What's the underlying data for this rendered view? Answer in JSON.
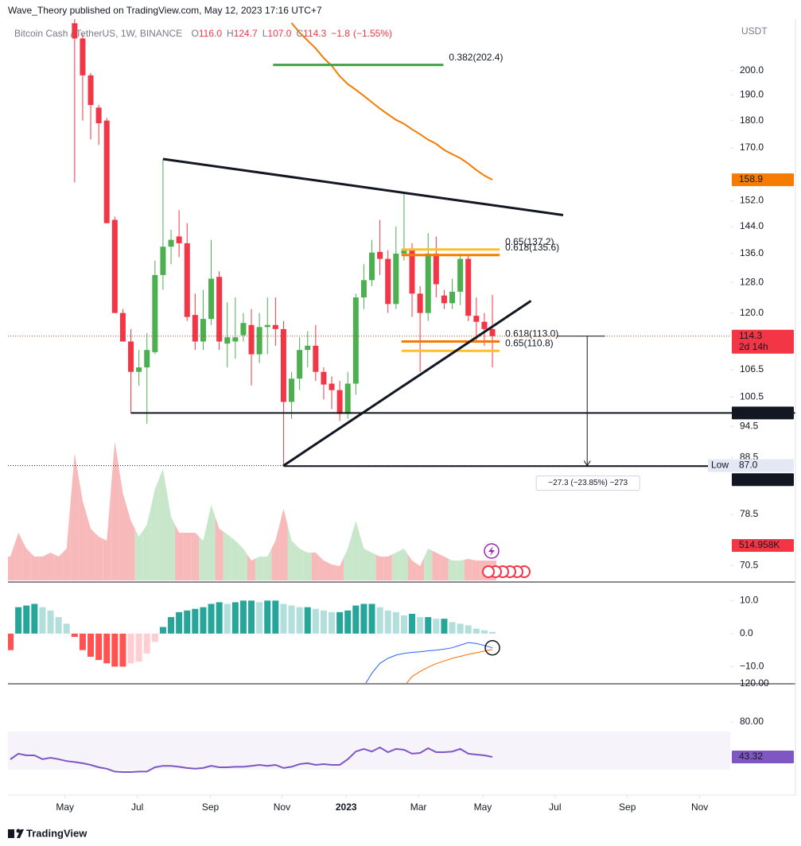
{
  "header": {
    "publisher": "Wave_Theory published on TradingView.com, May 12, 2023 17:16 UTC+7"
  },
  "footer": {
    "brand": "TradingView"
  },
  "chart_data": {
    "type": "candlestick",
    "title": "Bitcoin Cash / TetherUS, 1W, BINANCE",
    "legend": [
      {
        "key": "O",
        "value": 116,
        "label": "116.0"
      },
      {
        "key": "H",
        "value": 124.7,
        "label": "124.7"
      },
      {
        "key": "L",
        "value": 107,
        "label": "107.0"
      },
      {
        "key": "C",
        "value": 114.3,
        "label": "114.3"
      }
    ],
    "change": {
      "value": -1.8,
      "label": "−1.8"
    },
    "change_pct": {
      "value": -1.55,
      "label": "(−1.55%)"
    },
    "currency": "USDT",
    "countdown": "2d 14h",
    "grid": false,
    "log_scale": true,
    "up_color": "#4caf50",
    "down_color": "#f23645",
    "xlim": [
      -0.3,
      89.6
    ],
    "xticks": [
      {
        "value": 6.8,
        "label": "May"
      },
      {
        "value": 15.8,
        "label": "Jul"
      },
      {
        "value": 24.9,
        "label": "Sep"
      },
      {
        "value": 33.8,
        "label": "Nov"
      },
      {
        "value": 41.8,
        "label": "2023"
      },
      {
        "value": 50.8,
        "label": "Mar"
      },
      {
        "value": 58.8,
        "label": "May"
      },
      {
        "value": 67.8,
        "label": "Jul"
      },
      {
        "value": 76.8,
        "label": "Sep"
      },
      {
        "value": 85.8,
        "label": "Nov"
      }
    ],
    "ylim": [
      68.3,
      220.7
    ],
    "yticks": [
      {
        "value": 200,
        "label": "200.0"
      },
      {
        "value": 190,
        "label": "190.0"
      },
      {
        "value": 180,
        "label": "180.0"
      },
      {
        "value": 170,
        "label": "170.0"
      },
      {
        "value": 152,
        "label": "152.0"
      },
      {
        "value": 144,
        "label": "144.0"
      },
      {
        "value": 136,
        "label": "136.0"
      },
      {
        "value": 128,
        "label": "128.0"
      },
      {
        "value": 120,
        "label": "120.0"
      },
      106.5,
      100.5,
      94.5,
      88.5,
      78.5,
      70.5
    ],
    "open": [
      null,
      null,
      null,
      null,
      null,
      null,
      null,
      null,
      221,
      214,
      198,
      185,
      180,
      146,
      120,
      113,
      106,
      107,
      110.5,
      130,
      138,
      141,
      139,
      119.5,
      113,
      118.5,
      129.5,
      112.5,
      113,
      114.5,
      117,
      110,
      116.5,
      117,
      116,
      99.5,
      104.5,
      111,
      112,
      106,
      103.4,
      102,
      97,
      103.4,
      124,
      128.6,
      136.5,
      134.5,
      122.3,
      136,
      137,
      125,
      120,
      136,
      124.5,
      122.5,
      125.5,
      134.5,
      119.3,
      117.8,
      116
    ],
    "high": [
      null,
      null,
      null,
      null,
      null,
      null,
      null,
      null,
      228,
      216,
      199,
      186,
      181,
      147,
      121,
      116,
      111,
      115,
      134,
      166,
      143,
      149,
      145,
      125,
      126,
      140,
      131,
      122.7,
      124,
      120,
      121,
      120,
      124,
      124,
      118,
      106,
      114,
      115.5,
      117,
      107,
      105,
      104,
      106,
      125,
      133,
      140,
      146,
      137,
      144,
      154.8,
      139,
      127,
      142,
      141,
      126,
      129,
      136,
      135.5,
      124,
      120,
      124.7
    ],
    "low": [
      null,
      null,
      null,
      null,
      null,
      null,
      null,
      null,
      158,
      180,
      173,
      171,
      145,
      120,
      113,
      97.2,
      103,
      95,
      110,
      126,
      133,
      135,
      118,
      111,
      111,
      117,
      111,
      107,
      109,
      113,
      103,
      108,
      110,
      112,
      87,
      96,
      102,
      107,
      104,
      100,
      98,
      95.6,
      96,
      101,
      121,
      127,
      130,
      120,
      121,
      134,
      119,
      106,
      118,
      124,
      121,
      121,
      122,
      118,
      113,
      112,
      107
    ],
    "close": [
      null,
      null,
      null,
      null,
      null,
      null,
      null,
      null,
      214,
      198,
      186,
      179,
      145,
      120,
      113,
      106,
      107,
      111,
      130,
      138,
      140,
      139,
      119,
      113,
      118.5,
      129,
      113,
      114,
      114,
      117.5,
      110,
      116.5,
      117,
      116,
      99.5,
      104.5,
      111,
      112,
      106,
      103.2,
      102,
      97,
      103.4,
      124,
      128.6,
      136.3,
      134.5,
      122.3,
      136,
      137,
      125,
      120,
      136,
      127.5,
      122.5,
      125.5,
      134.5,
      119.3,
      117.8,
      116,
      114.3
    ],
    "moving_average": {
      "color": "#f57c00",
      "values": [
        null,
        null,
        null,
        null,
        null,
        null,
        null,
        null,
        null,
        null,
        null,
        null,
        null,
        null,
        null,
        null,
        null,
        null,
        null,
        null,
        null,
        null,
        null,
        null,
        null,
        null,
        null,
        null,
        null,
        null,
        null,
        null,
        null,
        null,
        null,
        221.1,
        216.7,
        213.1,
        209.6,
        205.4,
        202,
        197.7,
        194.4,
        192.1,
        189.6,
        187.1,
        184.6,
        182.4,
        180.3,
        178.8,
        176.7,
        174.9,
        172.9,
        171.4,
        169.2,
        167.7,
        166.3,
        164.4,
        162.2,
        160.3,
        158.9
      ]
    },
    "volume": {
      "ylim": [
        0,
        14400000
      ],
      "up_color": "#c8e6c9",
      "down_color": "#f7b9b9",
      "badge_color": "#f23645",
      "values": [
        617000,
        1234000,
        823000,
        617000,
        617000,
        720000,
        617000,
        823000,
        3291000,
        2057000,
        1337000,
        1131000,
        1028000,
        3600000,
        2263000,
        1543000,
        1131000,
        1440000,
        2366000,
        2880000,
        1646000,
        1234000,
        1234000,
        1234000,
        1028000,
        1954000,
        1337000,
        1193000,
        1028000,
        823000,
        514000,
        617000,
        617000,
        1028000,
        1851000,
        1028000,
        823000,
        720000,
        720000,
        514000,
        411000,
        370000,
        823000,
        1543000,
        823000,
        720000,
        617000,
        617000,
        720000,
        823000,
        514000,
        370000,
        823000,
        720000,
        617000,
        514000,
        514000,
        555000,
        514000,
        514000,
        514958
      ],
      "value_labels": [
        null,
        null,
        null,
        null,
        null,
        null,
        null,
        null,
        null,
        null,
        null,
        null,
        null,
        null,
        null,
        null,
        null,
        null,
        null,
        null,
        null,
        null,
        null,
        null,
        null,
        null,
        null,
        null,
        null,
        null,
        null,
        null,
        null,
        null,
        null,
        null,
        null,
        null,
        null,
        null,
        null,
        null,
        null,
        null,
        null,
        null,
        null,
        null,
        null,
        null,
        null,
        null,
        null,
        null,
        null,
        null,
        null,
        null,
        null,
        null,
        "514.958K"
      ]
    },
    "fib_levels": [
      {
        "label": "0.382(202.4)",
        "value": 202.4,
        "color": "#43a047",
        "from": 32.7,
        "to": 53.9
      },
      {
        "label": "0.65(137.2)",
        "value": 137.2,
        "color": "#fbc02d",
        "from": 48.7,
        "to": 60.9
      },
      {
        "label": "0.618(135.6)",
        "value": 135.6,
        "color": "#f57c00",
        "from": 48.7,
        "to": 60.9
      },
      {
        "label": "0.618(113.0)",
        "value": 113.0,
        "color": "#f57c00",
        "from": 48.7,
        "to": 60.9
      },
      {
        "label": "0.65(110.8)",
        "value": 110.8,
        "color": "#fbc02d",
        "from": 48.7,
        "to": 60.9
      }
    ],
    "trendlines": [
      {
        "from": [
          19,
          166
        ],
        "to": [
          68.8,
          147.5
        ]
      },
      {
        "from": [
          34,
          87
        ],
        "to": [
          64.8,
          123.1
        ]
      }
    ],
    "horizontal_lines": [
      {
        "value": 97.2,
        "from": 15
      },
      {
        "value": 86.9,
        "from": 34
      }
    ],
    "low_marker": {
      "label": "Low",
      "value": 87,
      "value_label": "87.0"
    },
    "measure": {
      "from": [
        71.8,
        114.3
      ],
      "to": [
        71.8,
        87
      ],
      "label": "−27.3 (−23.85%) −273"
    },
    "macd": {
      "ylim": [
        -15.2,
        14.9
      ],
      "yticks": [
        {
          "value": 10,
          "label": "10.0"
        },
        {
          "value": 0,
          "label": "0.0"
        },
        {
          "value": -10,
          "label": "−10.0"
        }
      ],
      "colors": {
        "grow_up": "#26a69a",
        "fall_up": "#b2dfdb",
        "grow_down": "#ff5252",
        "fall_down": "#ffcdd2",
        "macd": "#2962ff",
        "signal": "#ff6d00"
      },
      "histogram": [
        -5,
        8,
        8.5,
        9,
        8,
        7,
        5,
        3,
        -1,
        -5,
        -7,
        -8,
        -9,
        -10,
        -10,
        -9,
        -8.5,
        -6,
        -2.5,
        2,
        5,
        6.5,
        7,
        7.5,
        8,
        9,
        9.5,
        9,
        9.5,
        10,
        10,
        9.5,
        10,
        10,
        9,
        8.5,
        8,
        8,
        7.5,
        7,
        6.5,
        6.5,
        7,
        8.5,
        9,
        9,
        8,
        7,
        6.5,
        5.5,
        6,
        5,
        5,
        4.5,
        4.5,
        3.5,
        3,
        2.5,
        1.5,
        1,
        0.5
      ],
      "macd": [
        null,
        null,
        null,
        null,
        null,
        null,
        null,
        null,
        null,
        null,
        null,
        null,
        null,
        null,
        null,
        null,
        null,
        null,
        null,
        null,
        null,
        null,
        null,
        null,
        null,
        null,
        null,
        null,
        null,
        null,
        null,
        null,
        null,
        null,
        null,
        null,
        null,
        null,
        null,
        null,
        null,
        null,
        null,
        null,
        -16,
        -12,
        -9,
        -7.5,
        -6.5,
        -6,
        -5.7,
        -5.5,
        -5.2,
        -5,
        -4.7,
        -4.3,
        -3.5,
        -2.7,
        -3,
        -3.6,
        -4.3
      ],
      "signal": [
        null,
        null,
        null,
        null,
        null,
        null,
        null,
        null,
        null,
        null,
        null,
        null,
        null,
        null,
        null,
        null,
        null,
        null,
        null,
        null,
        null,
        null,
        null,
        null,
        null,
        null,
        null,
        null,
        null,
        null,
        null,
        null,
        null,
        null,
        null,
        null,
        null,
        null,
        null,
        null,
        null,
        null,
        null,
        null,
        null,
        null,
        null,
        null,
        null,
        -16,
        -13,
        -11.5,
        -10.2,
        -9.1,
        -8.3,
        -7.5,
        -6.9,
        -6.3,
        -5.8,
        -5.3,
        -4.8
      ]
    },
    "rsi": {
      "ylim": [
        3.3,
        120
      ],
      "yticks": [
        {
          "value": 120,
          "label": "120.00"
        },
        {
          "value": 80,
          "label": "80.00"
        }
      ],
      "band": [
        30,
        70
      ],
      "color": "#7e57c2",
      "values": [
        40.8,
        46.7,
        45,
        45,
        41,
        42.5,
        41,
        39,
        38,
        36.7,
        35,
        32.5,
        31,
        28,
        27.5,
        27.5,
        28,
        28,
        32.5,
        34,
        34,
        33,
        31.7,
        31,
        31.7,
        34,
        32.5,
        32.5,
        33,
        33,
        34,
        35,
        34,
        35,
        31.7,
        33,
        35.8,
        36.7,
        35,
        35.8,
        35,
        35,
        40.8,
        49,
        51.7,
        49,
        53.3,
        48.3,
        51.7,
        50.8,
        46.7,
        47.5,
        52.5,
        48.3,
        48.3,
        49,
        51.7,
        46.7,
        45.8,
        45,
        43.32
      ]
    }
  }
}
